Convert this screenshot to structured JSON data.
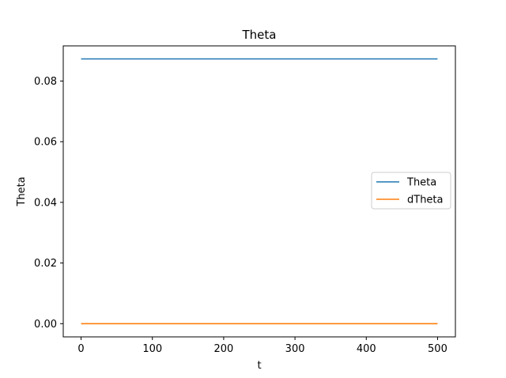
{
  "chart_data": {
    "type": "line",
    "title": "Theta",
    "xlabel": "t",
    "ylabel": "Theta",
    "xlim": [
      -25,
      525
    ],
    "ylim": [
      -0.00436,
      0.0916
    ],
    "xticks": [
      0,
      100,
      200,
      300,
      400,
      500
    ],
    "xtick_labels": [
      "0",
      "100",
      "200",
      "300",
      "400",
      "500"
    ],
    "yticks": [
      0.0,
      0.02,
      0.04,
      0.06,
      0.08
    ],
    "ytick_labels": [
      "0.00",
      "0.02",
      "0.04",
      "0.06",
      "0.08"
    ],
    "grid": false,
    "legend_position": "center-right",
    "series": [
      {
        "name": "Theta",
        "color": "#1f77b4",
        "x": [
          0,
          500
        ],
        "y": [
          0.0873,
          0.0873
        ]
      },
      {
        "name": "dTheta",
        "color": "#ff7f0e",
        "x": [
          0,
          500
        ],
        "y": [
          0.0,
          0.0
        ]
      }
    ]
  }
}
